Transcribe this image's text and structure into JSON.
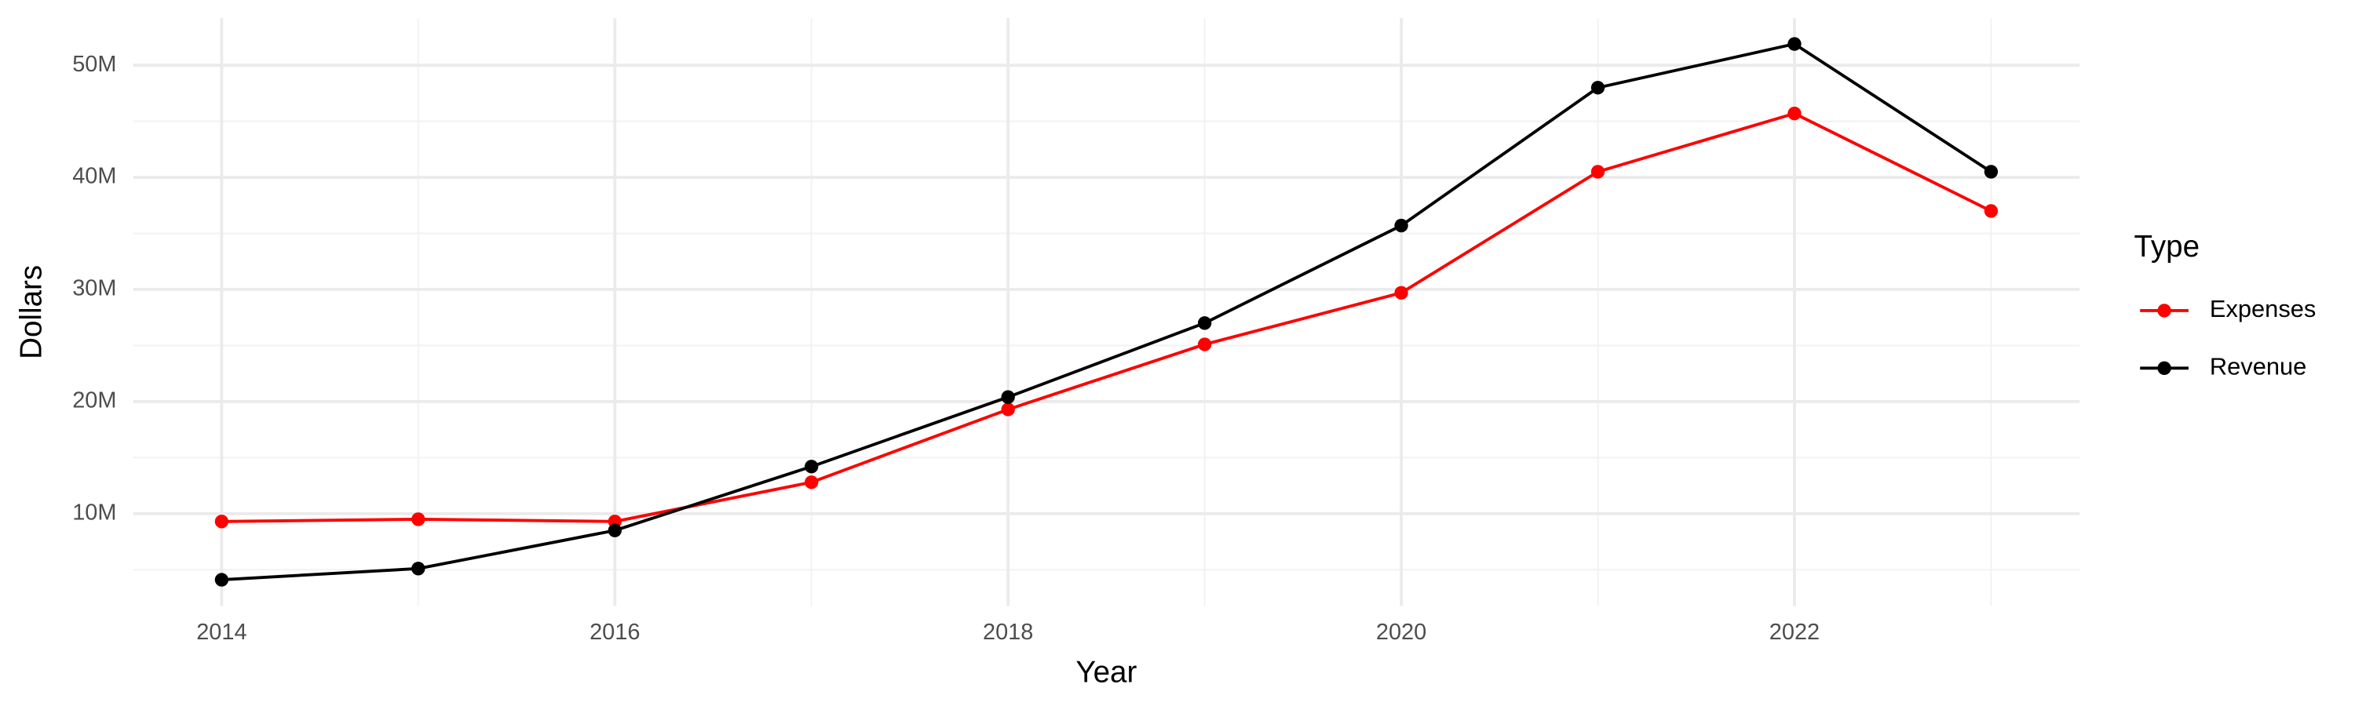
{
  "chart_data": {
    "type": "line",
    "x_label": "Year",
    "y_label": "Dollars",
    "x": [
      2014,
      2015,
      2016,
      2017,
      2018,
      2019,
      2020,
      2021,
      2022,
      2023
    ],
    "series": [
      {
        "name": "Expenses",
        "color": "#ff0000",
        "values": [
          9300000,
          9500000,
          9300000,
          12800000,
          19300000,
          25100000,
          29700000,
          40500000,
          45700000,
          37000000
        ]
      },
      {
        "name": "Revenue",
        "color": "#000000",
        "values": [
          4100000,
          5100000,
          8500000,
          14200000,
          20400000,
          27000000,
          35700000,
          48000000,
          51900000,
          40500000
        ]
      }
    ],
    "xlim": [
      2013.55,
      2023.45
    ],
    "xticks": [
      2014,
      2016,
      2018,
      2020,
      2022
    ],
    "ylim": [
      1760000,
      54200000
    ],
    "yticks": [
      {
        "value": 10000000,
        "label": "10M"
      },
      {
        "value": 20000000,
        "label": "20M"
      },
      {
        "value": 30000000,
        "label": "30M"
      },
      {
        "value": 40000000,
        "label": "40M"
      },
      {
        "value": 50000000,
        "label": "50M"
      }
    ],
    "grid": true,
    "legend_title": "Type",
    "legend": "right"
  }
}
